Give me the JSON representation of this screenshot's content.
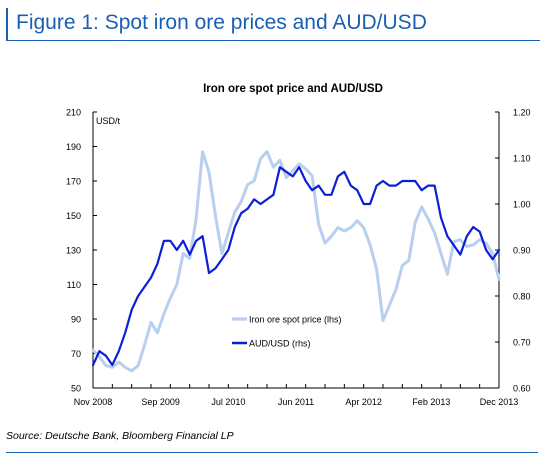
{
  "figure": {
    "title": "Figure 1: Spot iron ore prices and AUD/USD",
    "source": "Source: Deutsche Bank, Bloomberg Financial LP"
  },
  "colors": {
    "accent": "#1a5fb4",
    "iron_ore": "#b9cff0",
    "audusd": "#0b1fd6"
  },
  "chart_data": {
    "type": "line",
    "title": "Iron ore spot price and AUD/USD",
    "left_axis": {
      "label": "USD/t",
      "range": [
        50,
        210
      ],
      "ticks": [
        "50",
        "70",
        "90",
        "110",
        "130",
        "150",
        "170",
        "190",
        "210"
      ]
    },
    "right_axis": {
      "label": "",
      "range": [
        0.6,
        1.2
      ],
      "ticks": [
        "0.60",
        "0.70",
        "0.80",
        "0.90",
        "1.00",
        "1.10",
        "1.20"
      ]
    },
    "x_axis": {
      "range": [
        "2008-11",
        "2014-02"
      ],
      "tick_labels": [
        "Nov 2008",
        "Sep 2009",
        "Jul 2010",
        "Jun 2011",
        "Apr 2012",
        "Feb 2013",
        "Dec 2013"
      ]
    },
    "legend": {
      "position": "center-bottom"
    },
    "grid": false,
    "series": [
      {
        "name": "Iron ore spot price (lhs)",
        "axis": "left",
        "x": [
          "2008-11",
          "2008-12",
          "2009-01",
          "2009-02",
          "2009-03",
          "2009-04",
          "2009-05",
          "2009-06",
          "2009-07",
          "2009-08",
          "2009-09",
          "2009-10",
          "2009-11",
          "2009-12",
          "2010-01",
          "2010-02",
          "2010-03",
          "2010-04",
          "2010-05",
          "2010-06",
          "2010-07",
          "2010-08",
          "2010-09",
          "2010-10",
          "2010-11",
          "2010-12",
          "2011-01",
          "2011-02",
          "2011-03",
          "2011-04",
          "2011-05",
          "2011-06",
          "2011-07",
          "2011-08",
          "2011-09",
          "2011-10",
          "2011-11",
          "2011-12",
          "2012-01",
          "2012-02",
          "2012-03",
          "2012-04",
          "2012-05",
          "2012-06",
          "2012-07",
          "2012-08",
          "2012-09",
          "2012-10",
          "2012-11",
          "2012-12",
          "2013-01",
          "2013-02",
          "2013-03",
          "2013-04",
          "2013-05",
          "2013-06",
          "2013-07",
          "2013-08",
          "2013-09",
          "2013-10",
          "2013-11",
          "2013-12",
          "2014-01",
          "2014-02"
        ],
        "y": [
          72,
          68,
          63,
          62,
          65,
          62,
          60,
          63,
          75,
          88,
          82,
          93,
          102,
          110,
          128,
          125,
          148,
          187,
          175,
          150,
          128,
          140,
          152,
          158,
          168,
          170,
          183,
          187,
          178,
          182,
          172,
          176,
          180,
          177,
          173,
          145,
          134,
          138,
          143,
          141,
          143,
          147,
          143,
          133,
          119,
          89,
          98,
          107,
          121,
          124,
          146,
          155,
          148,
          140,
          128,
          116,
          135,
          136,
          132,
          133,
          136,
          134,
          128,
          113
        ]
      },
      {
        "name": "AUD/USD (rhs)",
        "axis": "right",
        "x": [
          "2008-11",
          "2008-12",
          "2009-01",
          "2009-02",
          "2009-03",
          "2009-04",
          "2009-05",
          "2009-06",
          "2009-07",
          "2009-08",
          "2009-09",
          "2009-10",
          "2009-11",
          "2009-12",
          "2010-01",
          "2010-02",
          "2010-03",
          "2010-04",
          "2010-05",
          "2010-06",
          "2010-07",
          "2010-08",
          "2010-09",
          "2010-10",
          "2010-11",
          "2010-12",
          "2011-01",
          "2011-02",
          "2011-03",
          "2011-04",
          "2011-05",
          "2011-06",
          "2011-07",
          "2011-08",
          "2011-09",
          "2011-10",
          "2011-11",
          "2011-12",
          "2012-01",
          "2012-02",
          "2012-03",
          "2012-04",
          "2012-05",
          "2012-06",
          "2012-07",
          "2012-08",
          "2012-09",
          "2012-10",
          "2012-11",
          "2012-12",
          "2013-01",
          "2013-02",
          "2013-03",
          "2013-04",
          "2013-05",
          "2013-06",
          "2013-07",
          "2013-08",
          "2013-09",
          "2013-10",
          "2013-11",
          "2013-12",
          "2014-01",
          "2014-02"
        ],
        "y": [
          0.65,
          0.68,
          0.67,
          0.65,
          0.68,
          0.72,
          0.77,
          0.8,
          0.82,
          0.84,
          0.87,
          0.92,
          0.92,
          0.9,
          0.92,
          0.89,
          0.92,
          0.93,
          0.85,
          0.86,
          0.88,
          0.9,
          0.95,
          0.98,
          0.99,
          1.01,
          1.0,
          1.01,
          1.02,
          1.08,
          1.07,
          1.06,
          1.08,
          1.05,
          1.03,
          1.04,
          1.02,
          1.02,
          1.06,
          1.07,
          1.04,
          1.03,
          1.0,
          1.0,
          1.04,
          1.05,
          1.04,
          1.04,
          1.05,
          1.05,
          1.05,
          1.03,
          1.04,
          1.04,
          0.97,
          0.93,
          0.91,
          0.89,
          0.93,
          0.95,
          0.94,
          0.9,
          0.88,
          0.9
        ]
      }
    ]
  }
}
